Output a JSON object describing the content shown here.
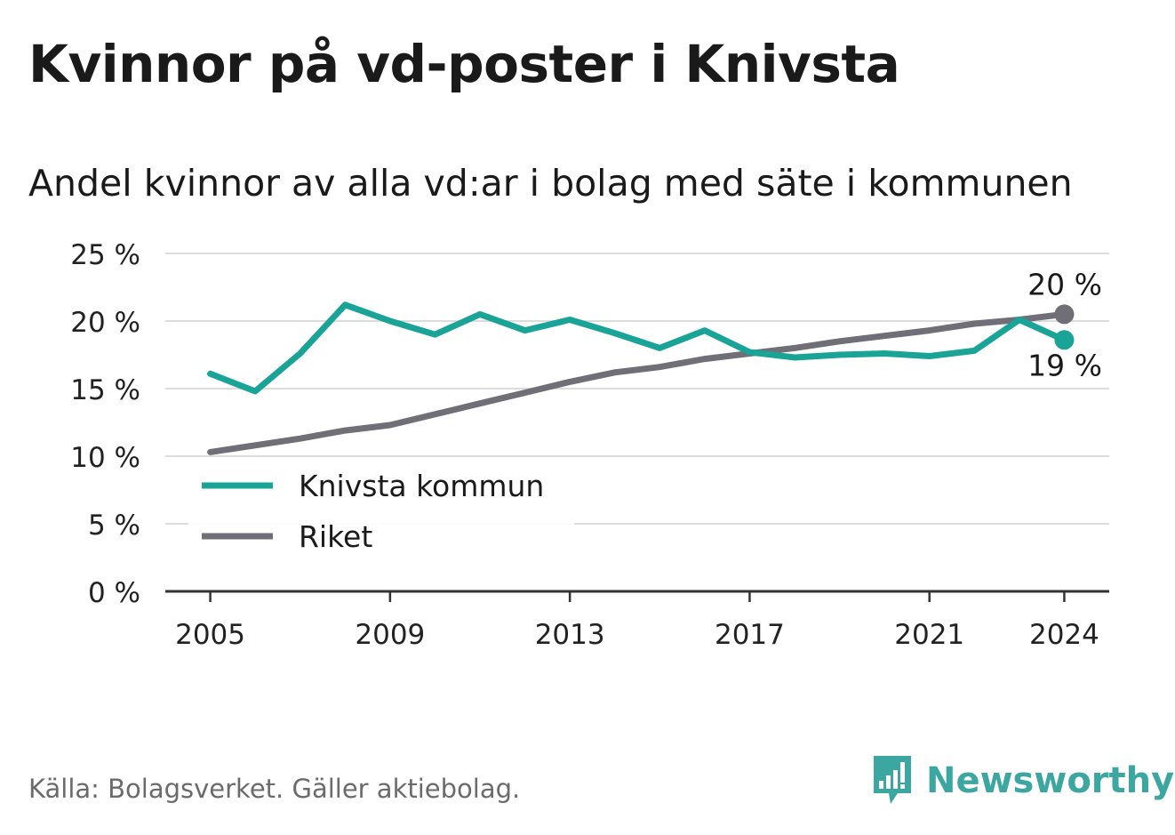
{
  "title": "Kvinnor på vd-poster i Knivsta",
  "subtitle": "Andel kvinnor av alla vd:ar i bolag med säte i kommunen",
  "source": "Källa: Bolagsverket. Gäller aktiebolag.",
  "brand": "Newsworthy",
  "colors": {
    "knivsta": "#1aa498",
    "riket": "#706e76",
    "grid": "#dcdcdc",
    "axis": "#333333"
  },
  "chart_data": {
    "type": "line",
    "title": "Kvinnor på vd-poster i Knivsta",
    "xlabel": "",
    "ylabel": "",
    "x": [
      2005,
      2006,
      2007,
      2008,
      2009,
      2010,
      2011,
      2012,
      2013,
      2014,
      2015,
      2016,
      2017,
      2018,
      2019,
      2020,
      2021,
      2022,
      2023,
      2024
    ],
    "xlim": [
      2004,
      2025
    ],
    "xticks": [
      2005,
      2009,
      2013,
      2017,
      2021,
      2024
    ],
    "xtick_labels": [
      "2005",
      "2009",
      "2013",
      "2017",
      "2021",
      "2024"
    ],
    "ylim": [
      0,
      25
    ],
    "yticks": [
      0,
      5,
      10,
      15,
      20,
      25
    ],
    "ytick_labels": [
      "0 %",
      "5 %",
      "10 %",
      "15 %",
      "20 %",
      "25 %"
    ],
    "grid": true,
    "legend_position": "bottom-left",
    "series": [
      {
        "name": "Knivsta kommun",
        "color": "#1aa498",
        "values": [
          16.1,
          14.8,
          17.6,
          21.2,
          20.0,
          19.0,
          20.5,
          19.3,
          20.1,
          19.1,
          18.0,
          19.3,
          17.7,
          17.3,
          17.5,
          17.6,
          17.4,
          17.8,
          20.1,
          18.6
        ],
        "end_label": "19 %"
      },
      {
        "name": "Riket",
        "color": "#706e76",
        "values": [
          10.3,
          10.8,
          11.3,
          11.9,
          12.3,
          13.1,
          13.9,
          14.7,
          15.5,
          16.2,
          16.6,
          17.2,
          17.6,
          18.0,
          18.5,
          18.9,
          19.3,
          19.8,
          20.1,
          20.5
        ],
        "end_label": "20 %"
      }
    ]
  }
}
